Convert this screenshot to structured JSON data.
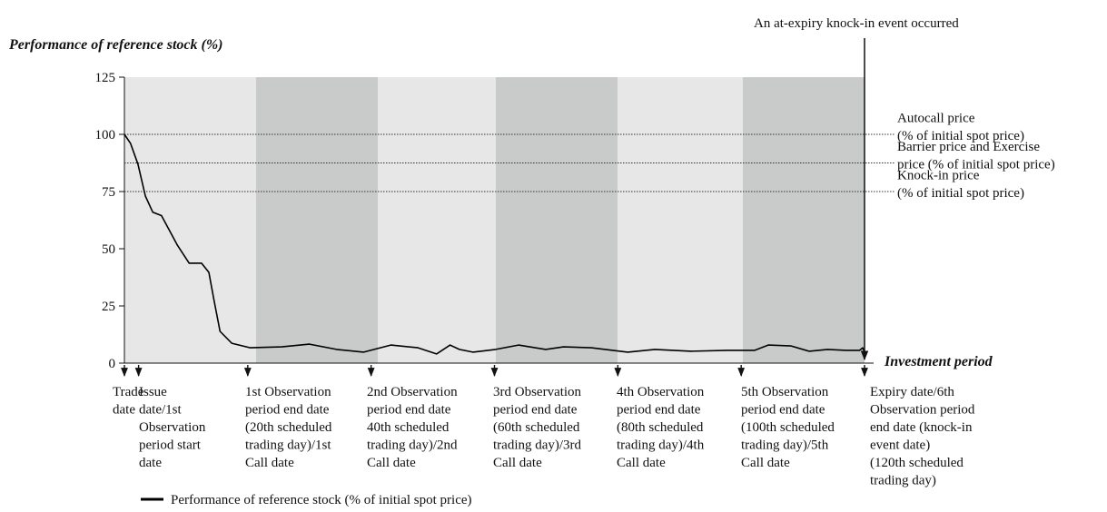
{
  "chart_data": {
    "type": "line",
    "y_axis_label": "Performance of reference stock (%)",
    "x_axis_label": "Investment period",
    "annotation": "An at-expiry knock-in event occurred",
    "xlim": [
      0,
      120
    ],
    "ylim": [
      0,
      125
    ],
    "yticks": [
      0,
      25,
      50,
      75,
      100,
      125
    ],
    "x": [
      0,
      1,
      2.2,
      3.4,
      4.6,
      6,
      8.6,
      10.5,
      12.5,
      13.7,
      14.5,
      15.5,
      17.4,
      20.4,
      25.5,
      30,
      34.4,
      38.8,
      43.2,
      47.6,
      50.6,
      52.8,
      54.3,
      56.5,
      60.2,
      63.9,
      68.3,
      71.2,
      75.7,
      81.6,
      86,
      91.9,
      97.8,
      102.2,
      104.4,
      108.1,
      111,
      114,
      117,
      119.2,
      119.7,
      120
    ],
    "series": [
      {
        "name": "Performance of reference stock (% of initial spot price)",
        "color": "#000000",
        "values": [
          100,
          96,
          87,
          73,
          66,
          64.5,
          51.5,
          43.7,
          43.7,
          39.7,
          27.8,
          13.9,
          8.7,
          6.7,
          7.1,
          8.3,
          6,
          4.8,
          7.9,
          6.7,
          4,
          7.9,
          6,
          4.8,
          6,
          7.9,
          6,
          7.1,
          6.7,
          4.8,
          6,
          5.2,
          5.6,
          5.6,
          7.9,
          7.5,
          5.2,
          6,
          5.6,
          5.6,
          6.7,
          4.8
        ]
      }
    ],
    "reference_lines": [
      {
        "value": 100,
        "label_lines": [
          "Autocall price",
          "(% of initial spot price)"
        ]
      },
      {
        "value": 87.5,
        "label_lines": [
          "Barrier price and Exercise",
          "price (% of initial spot price)"
        ]
      },
      {
        "value": 75,
        "label_lines": [
          "Knock-in price",
          "(% of initial spot price)"
        ]
      }
    ],
    "events": [
      {
        "x": 0,
        "label_lines": [
          "Trade",
          "date"
        ]
      },
      {
        "x": 2.3,
        "label_lines": [
          "Issue",
          "date/1st",
          "Observation",
          "period start",
          "date"
        ]
      },
      {
        "x": 20,
        "label_lines": [
          "1st Observation",
          "period end date",
          "(20th scheduled",
          "trading day)/1st",
          "Call date"
        ]
      },
      {
        "x": 40,
        "label_lines": [
          "2nd Observation",
          "period end date",
          "40th scheduled",
          "trading day)/2nd",
          "Call date"
        ]
      },
      {
        "x": 60,
        "label_lines": [
          "3rd Observation",
          "period end date",
          "(60th scheduled",
          "trading day)/3rd",
          "Call date"
        ]
      },
      {
        "x": 80,
        "label_lines": [
          "4th Observation",
          "period end date",
          "(80th scheduled",
          "trading day)/4th",
          "Call date"
        ]
      },
      {
        "x": 100,
        "label_lines": [
          "5th Observation",
          "period end date",
          "(100th scheduled",
          "trading day)/5th",
          "Call date"
        ]
      },
      {
        "x": 120,
        "label_lines": [
          "Expiry date/6th",
          "Observation period",
          "end date (knock-in",
          "event date)",
          "(120th scheduled",
          "trading day)"
        ]
      }
    ]
  }
}
